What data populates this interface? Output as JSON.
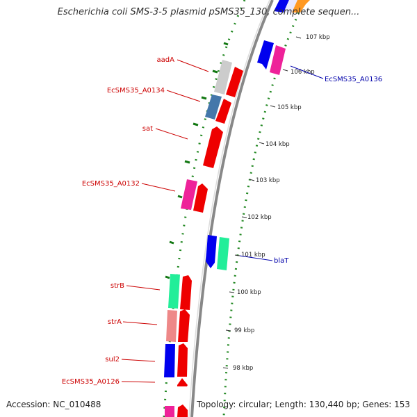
{
  "title": "Escherichia coli SMS-3-5 plasmid pSMS35_130, complete sequen...",
  "footer": {
    "accession": "Accession: NC_010488",
    "summary": "Topology: circular; Length: 130,440 bp; Genes: 153"
  },
  "tick_labels": [
    "107 kbp",
    "106 kbp",
    "105 kbp",
    "104 kbp",
    "103 kbp",
    "102 kbp",
    "101 kbp",
    "100 kbp",
    "99 kbp",
    "98 kbp"
  ],
  "gene_labels_left": [
    "aadA",
    "EcSMS35_A0134",
    "sat",
    "EcSMS35_A0132",
    "strB",
    "strA",
    "sul2",
    "EcSMS35_A0126"
  ],
  "gene_labels_right": [
    "EcSMS35_A0136",
    "blaT"
  ],
  "colors": {
    "left_label": "#cc0000",
    "right_label": "#0000aa",
    "red": "#ee0000",
    "blue": "#0000ee",
    "pink": "#ee2299",
    "green": "#22ee99",
    "steel": "#4477aa",
    "grey": "#cccccc",
    "salmon": "#ee8888",
    "orange": "#ff9922",
    "backbone": "#888888",
    "gc_dots": "#228822"
  }
}
